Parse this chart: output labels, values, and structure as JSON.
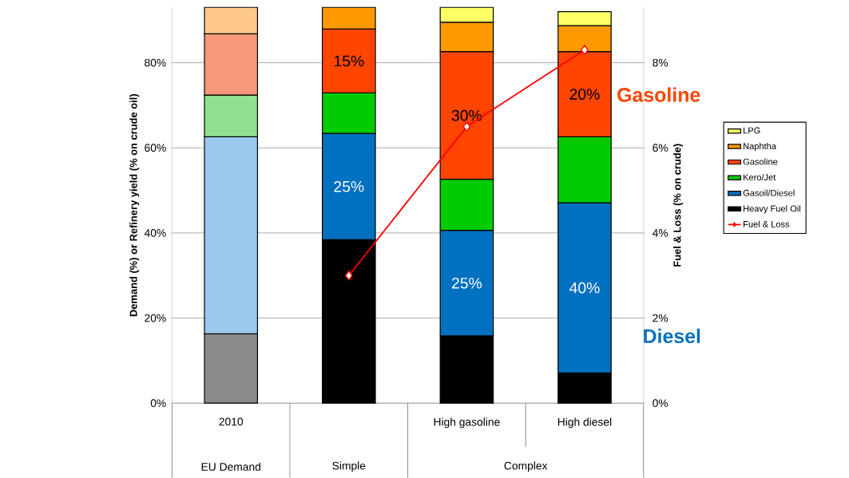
{
  "chart_data": {
    "type": "bar",
    "stacked": true,
    "categories": [
      "2010",
      null,
      "High gasoline",
      "High diesel"
    ],
    "ylabel": "Demand (%) or Refinery yield (% on crude oil)",
    "y2label": "Fuel & Loss (% on crude)",
    "ylim": [
      0,
      93
    ],
    "yticks": [
      {
        "value": 0,
        "label": "0%"
      },
      {
        "value": 20,
        "label": "20%"
      },
      {
        "value": 40,
        "label": "40%"
      },
      {
        "value": 60,
        "label": "60%"
      },
      {
        "value": 80,
        "label": "80%"
      }
    ],
    "y2lim": [
      0,
      9.3
    ],
    "y2ticks": [
      {
        "value": 0,
        "label": "0%"
      },
      {
        "value": 2,
        "label": "2%"
      },
      {
        "value": 4,
        "label": "4%"
      },
      {
        "value": 6,
        "label": "6%"
      },
      {
        "value": 8,
        "label": "8%"
      }
    ],
    "grid": "y",
    "legend": "right",
    "annotations": [
      "EU Demand",
      "Simple",
      "Complex",
      "Gasoline",
      "Diesel"
    ],
    "series": [
      {
        "name": "Heavy Fuel Oil",
        "color": "#000000",
        "colors": [
          "#8c8c8c",
          "#000000",
          "#000000",
          "#000000"
        ],
        "values": [
          16.3,
          38.4,
          15.8,
          7.1
        ]
      },
      {
        "name": "Gasoil/Diesel",
        "color": "#0070c0",
        "colors": [
          "#9cc8ec",
          "#0070c0",
          "#0070c0",
          "#0070c0"
        ],
        "values": [
          46.3,
          25,
          24.8,
          40
        ],
        "value_labels": [
          null,
          "25%",
          "25%",
          "40%"
        ]
      },
      {
        "name": "Kero/Jet",
        "color": "#00cc00",
        "colors": [
          "#8fe08f",
          "#00cc00",
          "#00cc00",
          "#00cc00"
        ],
        "values": [
          9.8,
          9.5,
          12.0,
          15.5
        ]
      },
      {
        "name": "Gasoline",
        "color": "#ff4500",
        "colors": [
          "#f7987a",
          "#ff4500",
          "#ff4500",
          "#ff4500"
        ],
        "values": [
          14.4,
          15,
          30,
          20
        ],
        "value_labels": [
          null,
          "15%",
          "30%",
          "20%"
        ]
      },
      {
        "name": "Naphtha",
        "color": "#ff9900",
        "colors": [
          "#fdc98a",
          "#ff9900",
          "#ff9900",
          "#ff9900"
        ],
        "values": [
          6.2,
          5.1,
          6.9,
          6.1
        ]
      },
      {
        "name": "LPG",
        "color": "#ffff66",
        "colors": [
          "#ffff99",
          "#ffff66",
          "#ffff66",
          "#ffff66"
        ],
        "values": [
          null,
          null,
          3.5,
          3.3
        ]
      },
      {
        "name": "Fuel & Loss",
        "type": "line",
        "axis": "y2",
        "color": "#ff0000",
        "marker": "diamond",
        "values": [
          null,
          3.0,
          6.5,
          8.3
        ]
      }
    ]
  }
}
